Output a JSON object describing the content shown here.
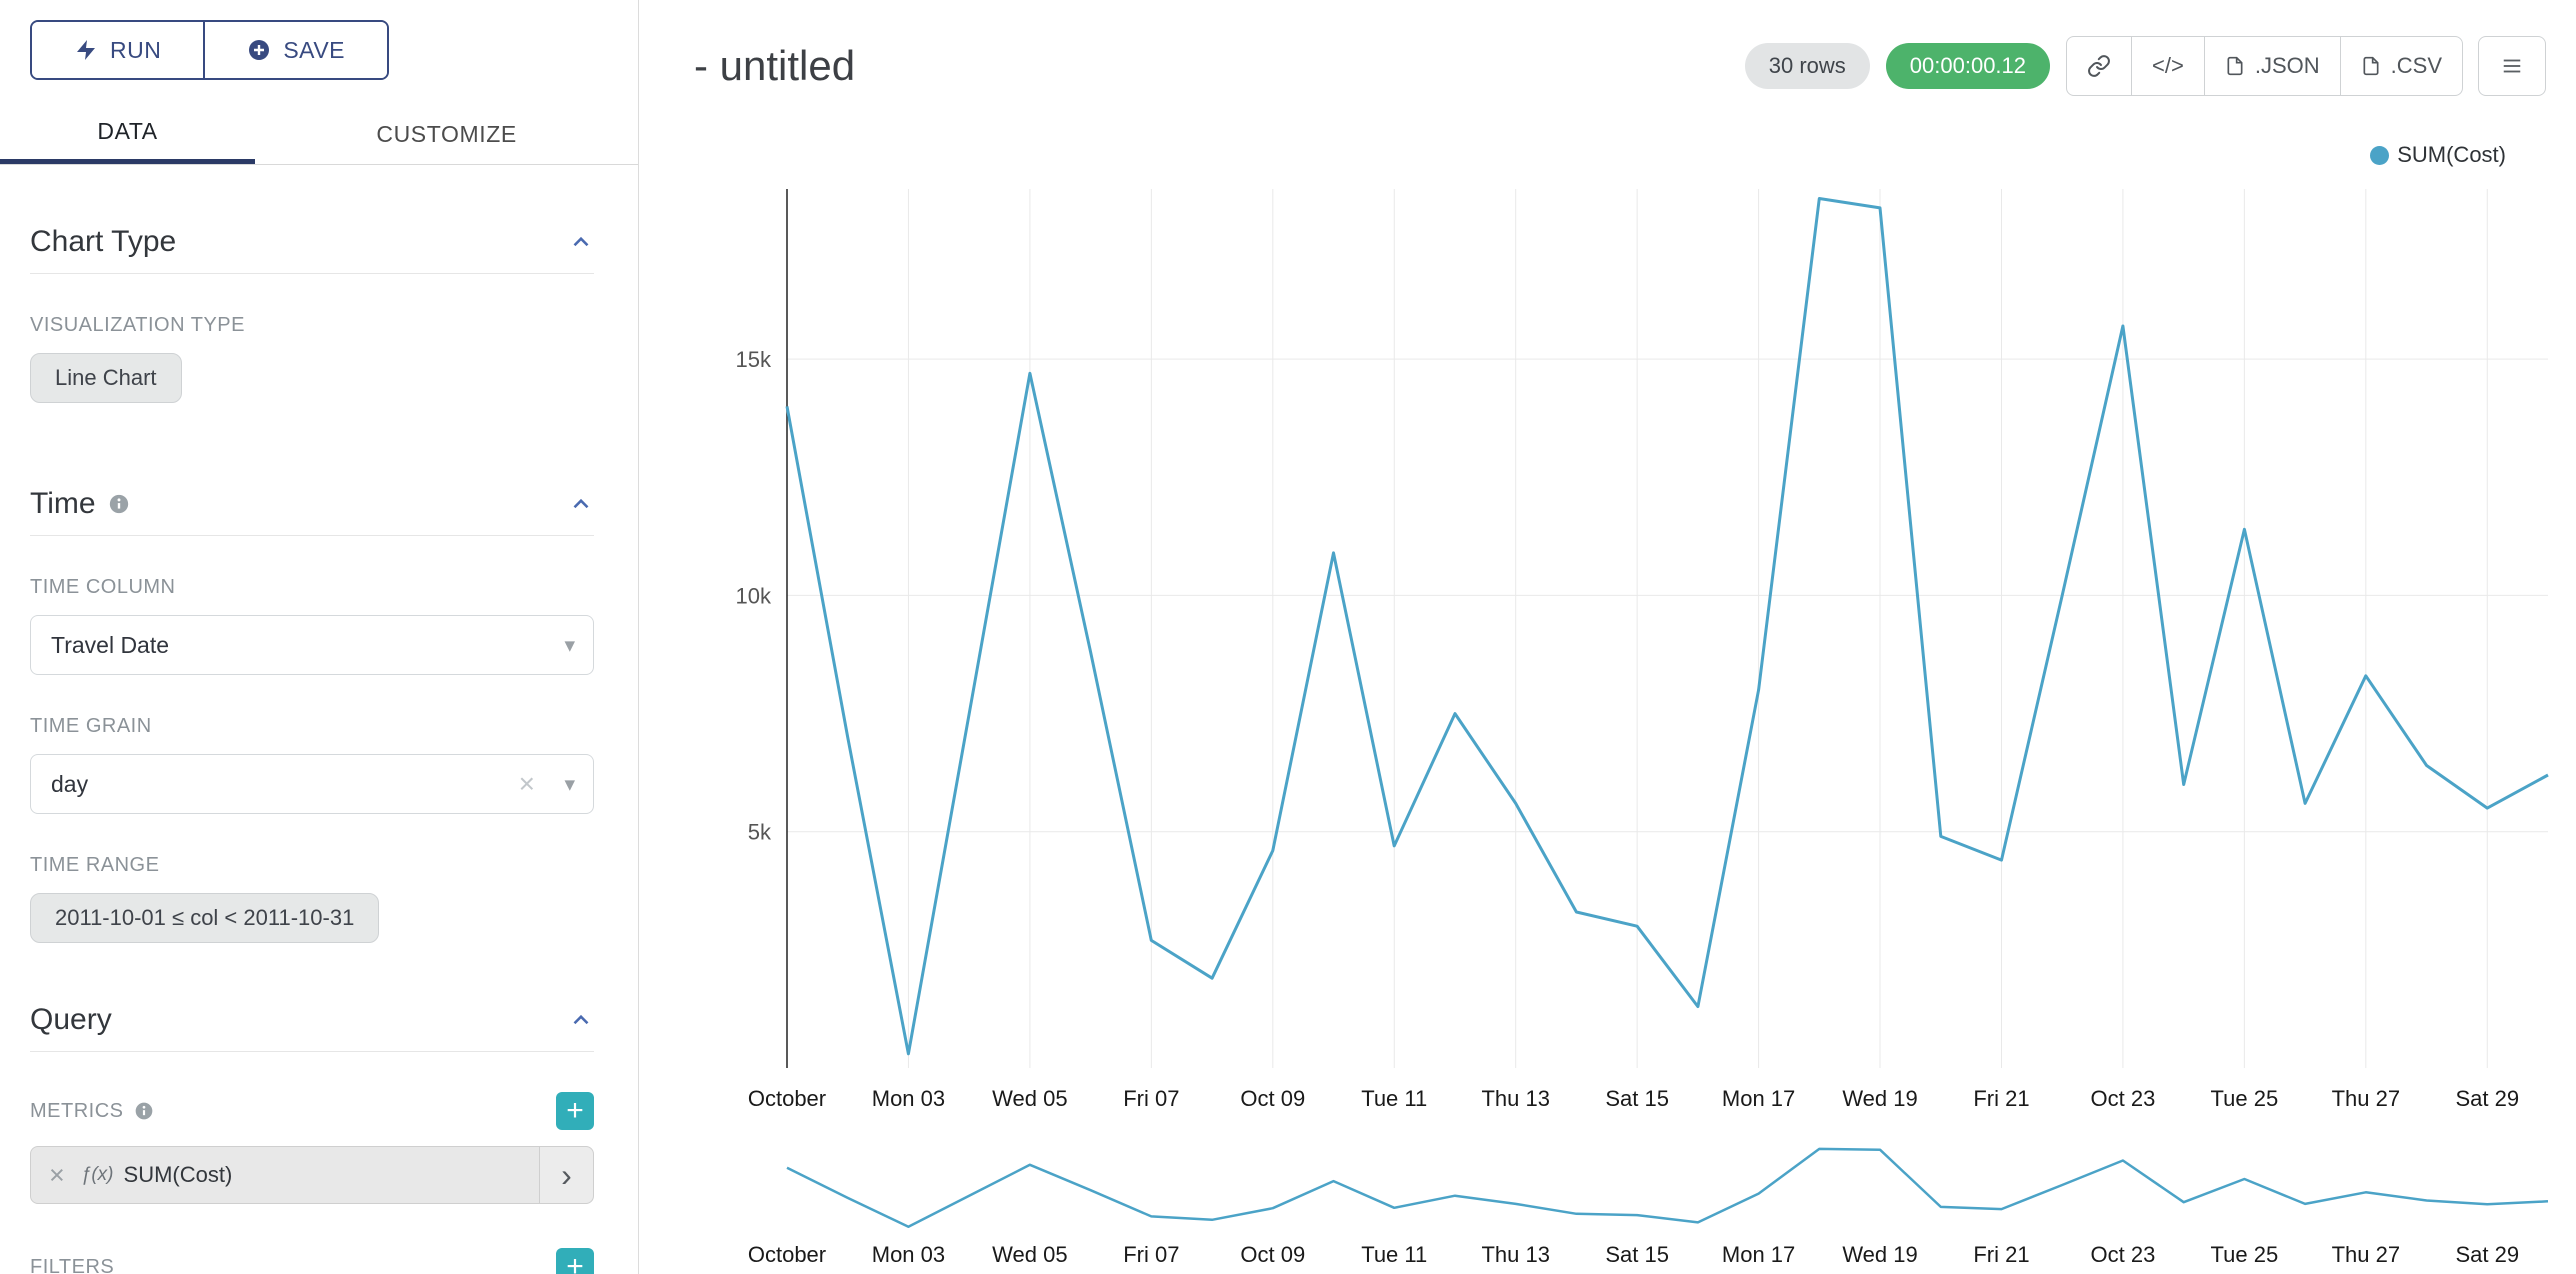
{
  "colors": {
    "indigo": "#384a80",
    "tab_underline": "#2b3a66",
    "teal_button": "#31aeb9",
    "timer_green": "#4db36b",
    "line": "#4BA3C7",
    "grid": "#e9e9e9",
    "label_gray": "#8b9298"
  },
  "actions": {
    "run": "RUN",
    "save": "SAVE"
  },
  "tabs": {
    "data": "DATA",
    "customize": "CUSTOMIZE"
  },
  "panel": {
    "chart_type": {
      "title": "Chart Type",
      "viz_label": "VISUALIZATION TYPE",
      "viz_value": "Line Chart"
    },
    "time": {
      "title": "Time",
      "column_label": "TIME COLUMN",
      "column_value": "Travel Date",
      "grain_label": "TIME GRAIN",
      "grain_value": "day",
      "range_label": "TIME RANGE",
      "range_value": "2011-10-01 ≤ col < 2011-10-31"
    },
    "query": {
      "title": "Query",
      "metrics_label": "METRICS",
      "metric_fx": "ƒ(x)",
      "metric_name": "SUM(Cost)",
      "filters_label": "FILTERS"
    }
  },
  "header": {
    "title": "- untitled",
    "rows_badge": "30 rows",
    "timer": "00:00:00.12",
    "code_button": "</>",
    "json_button": ".JSON",
    "csv_button": ".CSV"
  },
  "chart_data": {
    "type": "line",
    "title": "- untitled",
    "legend": [
      {
        "label": "SUM(Cost)",
        "color": "#4BA3C7"
      }
    ],
    "legend_position": "top-right",
    "grid": true,
    "context_brush": true,
    "ylim": [
      0,
      18600
    ],
    "y_ticks": [
      {
        "v": 5000,
        "label": "5k"
      },
      {
        "v": 10000,
        "label": "10k"
      },
      {
        "v": 15000,
        "label": "15k"
      }
    ],
    "x": [
      "2011-10-01",
      "2011-10-02",
      "2011-10-03",
      "2011-10-04",
      "2011-10-05",
      "2011-10-06",
      "2011-10-07",
      "2011-10-08",
      "2011-10-09",
      "2011-10-10",
      "2011-10-11",
      "2011-10-12",
      "2011-10-13",
      "2011-10-14",
      "2011-10-15",
      "2011-10-16",
      "2011-10-17",
      "2011-10-18",
      "2011-10-19",
      "2011-10-20",
      "2011-10-21",
      "2011-10-22",
      "2011-10-23",
      "2011-10-24",
      "2011-10-25",
      "2011-10-26",
      "2011-10-27",
      "2011-10-28",
      "2011-10-29",
      "2011-10-30"
    ],
    "x_tick_labels": [
      "October",
      "Mon 03",
      "Wed 05",
      "Fri 07",
      "Oct 09",
      "Tue 11",
      "Thu 13",
      "Sat 15",
      "Mon 17",
      "Wed 19",
      "Fri 21",
      "Oct 23",
      "Tue 25",
      "Thu 27",
      "Sat 29"
    ],
    "series": [
      {
        "name": "SUM(Cost)",
        "values": [
          14000,
          7000,
          300,
          7500,
          14700,
          8800,
          2700,
          1900,
          4600,
          10900,
          4700,
          7500,
          5600,
          3300,
          3000,
          1300,
          8000,
          18400,
          18200,
          4900,
          4400,
          10000,
          15700,
          6000,
          11400,
          5600,
          8300,
          6400,
          5500,
          6200
        ]
      }
    ]
  }
}
